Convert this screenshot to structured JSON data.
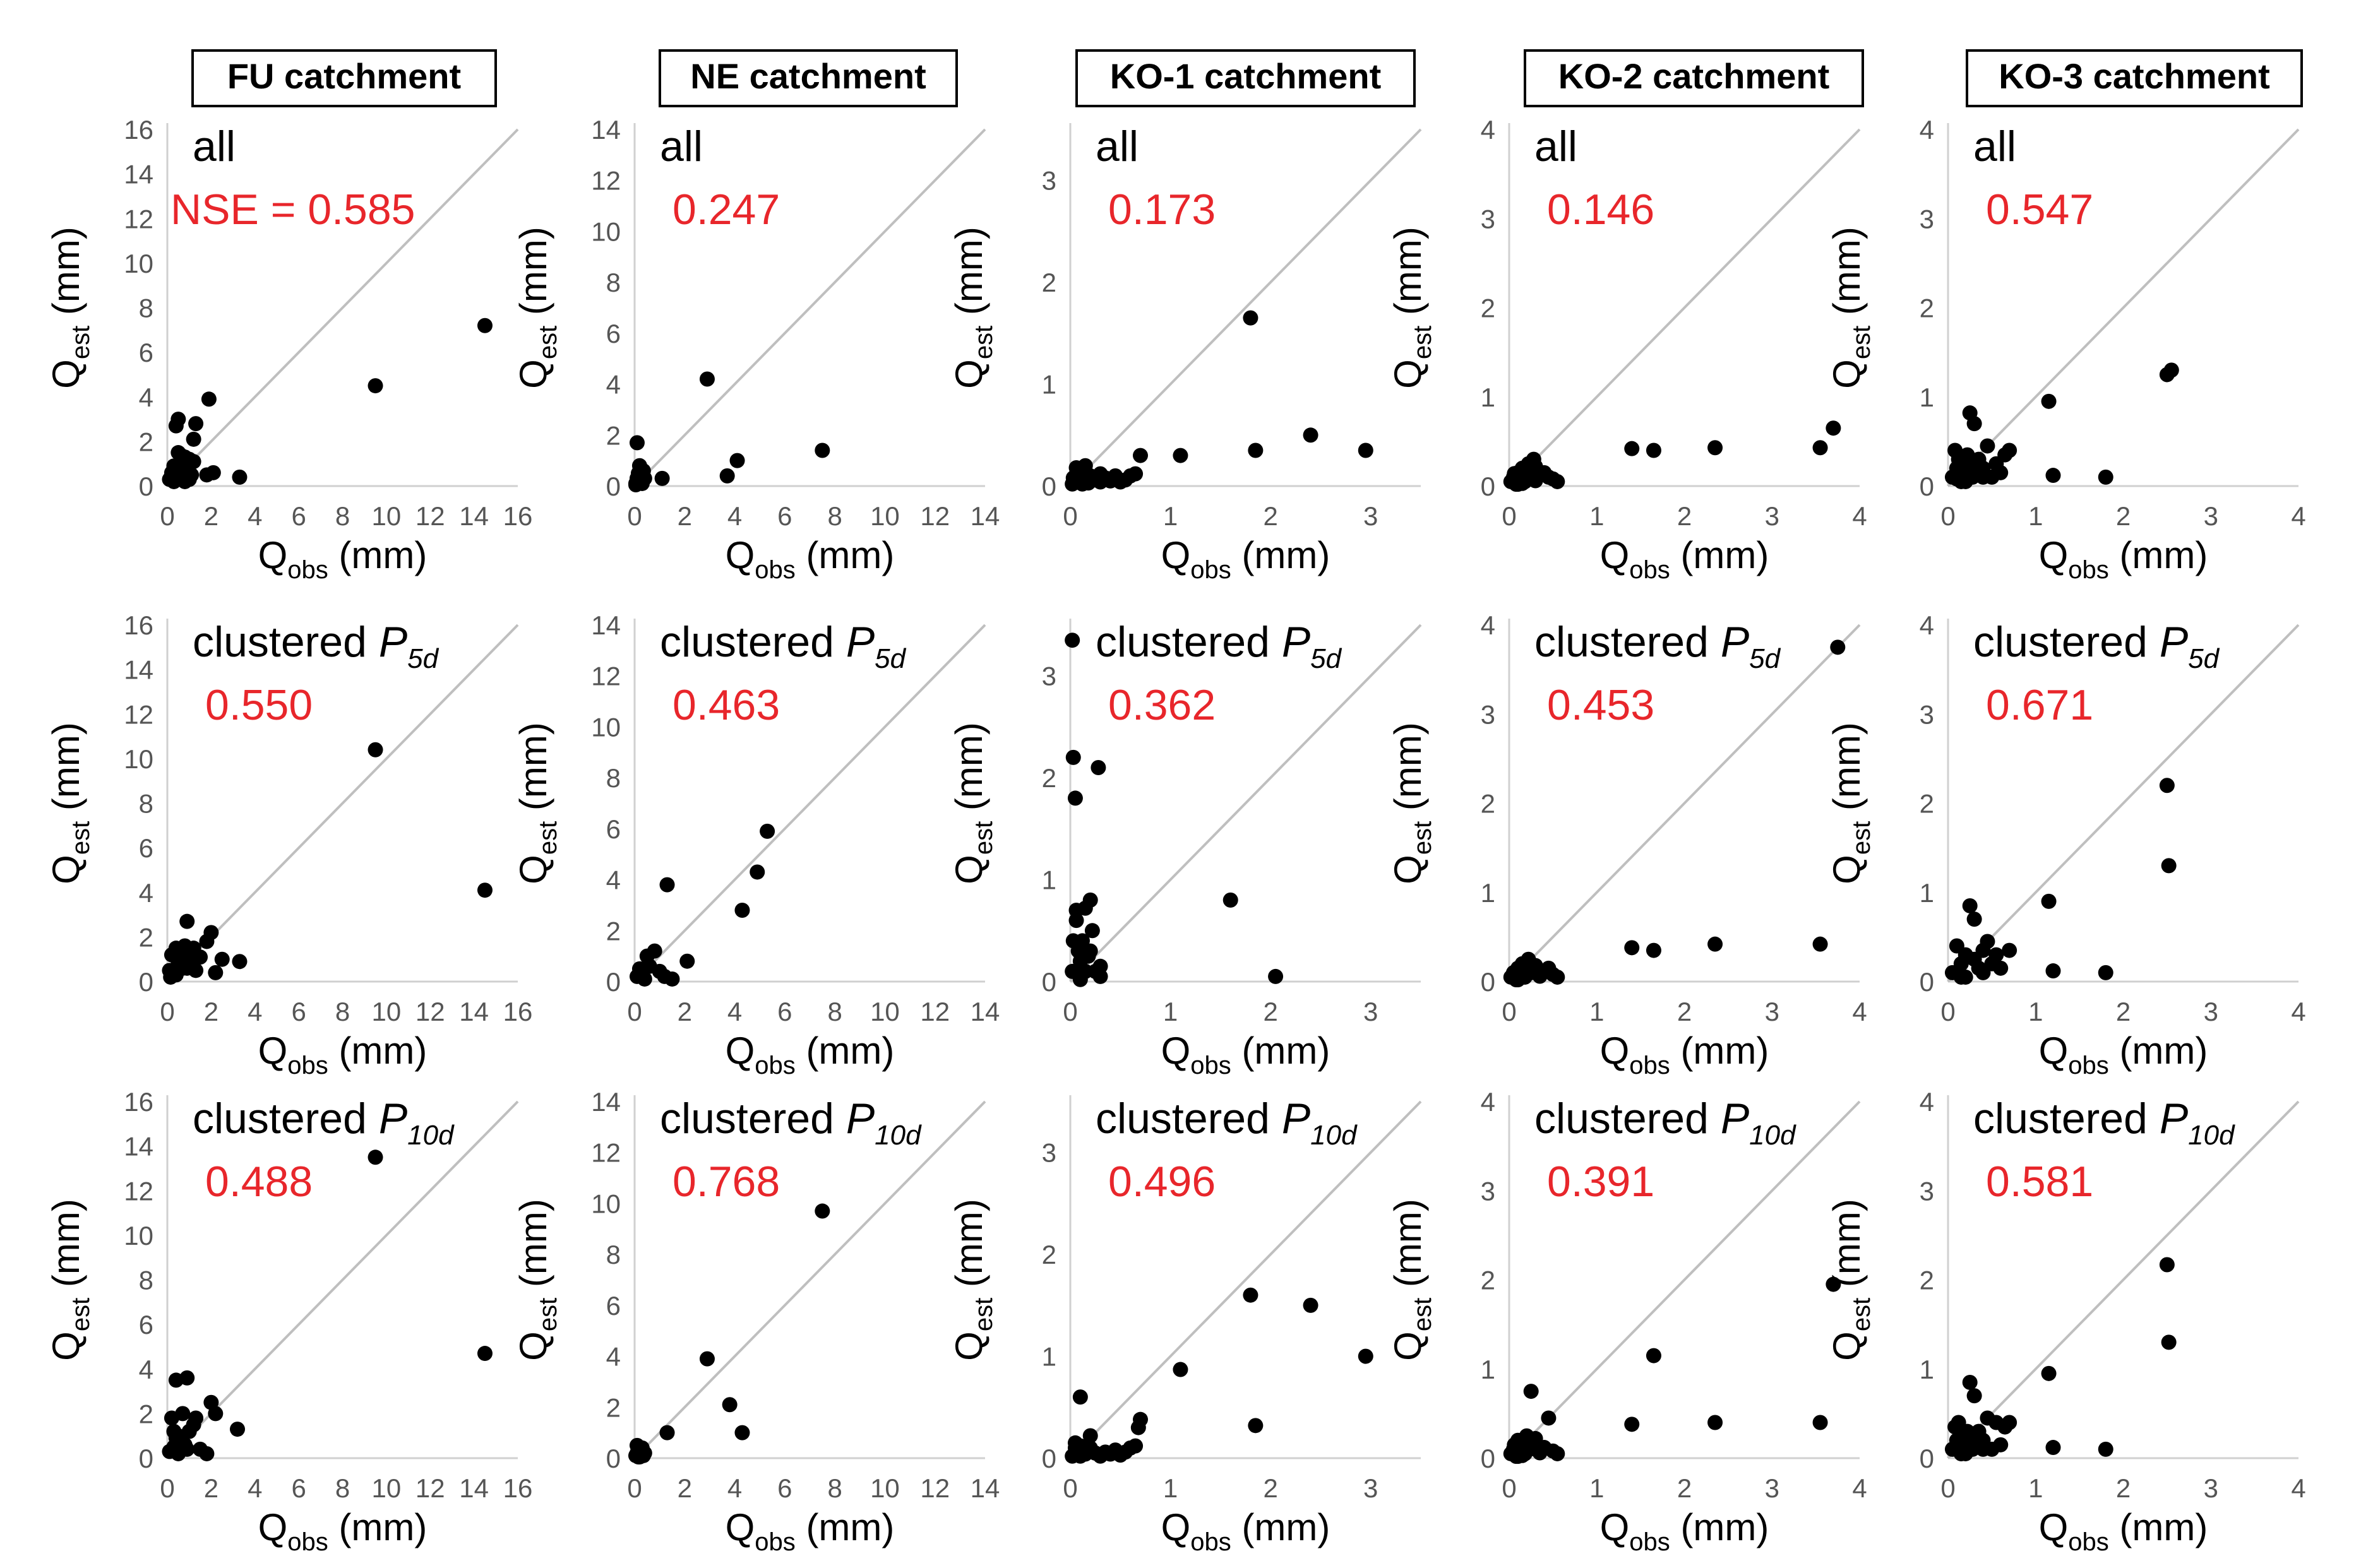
{
  "columns": [
    {
      "title": "FU catchment"
    },
    {
      "title": "NE catchment"
    },
    {
      "title": "KO-1 catchment"
    },
    {
      "title": "KO-2 catchment"
    },
    {
      "title": "KO-3 catchment"
    }
  ],
  "rows": [
    {
      "label": "all",
      "subscript": ""
    },
    {
      "label": "clustered P",
      "subscript": "5d"
    },
    {
      "label": "clustered P",
      "subscript": "10d"
    }
  ],
  "axis": {
    "x_label_main": "Q",
    "x_label_sub": "obs",
    "x_label_unit": " (mm)",
    "y_label_main": "Q",
    "y_label_sub": "est",
    "y_label_unit": " (mm)"
  },
  "colors": {
    "points": "#000000",
    "nse_text": "#e8262b",
    "one_to_one_line": "#bfbfbf",
    "axis_line": "#d0d0d0",
    "tick_text": "#555555"
  },
  "chart_data": [
    {
      "type": "scatter",
      "catchment": "FU catchment",
      "case": "all",
      "nse_label": "NSE = 0.585",
      "xlim": [
        0,
        16
      ],
      "ylim": [
        0,
        16
      ],
      "ticks": [
        0,
        2,
        4,
        6,
        8,
        10,
        12,
        14,
        16
      ],
      "x": [
        0.1,
        0.2,
        0.3,
        0.4,
        0.5,
        0.6,
        0.7,
        0.8,
        0.9,
        1.0,
        1.1,
        1.2,
        1.3,
        0.4,
        0.5,
        0.8,
        1.2,
        0.6,
        1.0,
        0.2,
        0.3,
        0.7,
        1.8,
        2.1,
        3.3,
        1.9,
        9.5,
        14.5,
        0.9,
        0.5
      ],
      "y": [
        0.3,
        0.5,
        0.2,
        0.8,
        0.4,
        1.0,
        0.6,
        1.3,
        0.9,
        1.2,
        0.5,
        2.1,
        2.8,
        2.7,
        3.0,
        0.2,
        1.1,
        1.4,
        0.3,
        0.6,
        0.9,
        0.4,
        0.5,
        0.6,
        0.4,
        3.9,
        4.5,
        7.2,
        0.7,
        1.5
      ]
    },
    {
      "type": "scatter",
      "catchment": "NE catchment",
      "case": "all",
      "nse_label": "0.247",
      "xlim": [
        0,
        14
      ],
      "ylim": [
        0,
        14
      ],
      "ticks": [
        0,
        2,
        4,
        6,
        8,
        10,
        12,
        14
      ],
      "x": [
        0.05,
        0.1,
        0.15,
        0.2,
        0.25,
        0.3,
        0.35,
        0.4,
        0.1,
        0.2,
        0.05,
        0.3,
        1.1,
        2.9,
        3.7,
        4.1,
        7.5,
        0.15
      ],
      "y": [
        0.1,
        0.3,
        0.5,
        0.2,
        0.4,
        0.1,
        0.6,
        0.3,
        1.7,
        0.8,
        0.05,
        0.5,
        0.3,
        4.2,
        0.4,
        1.0,
        1.4,
        0.2
      ]
    },
    {
      "type": "scatter",
      "catchment": "KO-1 catchment",
      "case": "all",
      "nse_label": "0.173",
      "xlim": [
        0,
        3.5
      ],
      "ylim": [
        0,
        3.5
      ],
      "ticks": [
        0,
        1,
        2,
        3
      ],
      "x": [
        0.02,
        0.05,
        0.08,
        0.1,
        0.12,
        0.15,
        0.18,
        0.2,
        0.25,
        0.3,
        0.35,
        0.4,
        0.45,
        0.5,
        0.55,
        0.6,
        0.65,
        0.7,
        0.06,
        0.09,
        0.14,
        0.03,
        0.22,
        1.1,
        1.8,
        1.85,
        2.4,
        2.95,
        0.12,
        0.3
      ],
      "y": [
        0.02,
        0.1,
        0.05,
        0.15,
        0.08,
        0.2,
        0.03,
        0.1,
        0.06,
        0.04,
        0.08,
        0.05,
        0.1,
        0.04,
        0.06,
        0.1,
        0.12,
        0.3,
        0.18,
        0.12,
        0.16,
        0.08,
        0.09,
        0.3,
        1.65,
        0.35,
        0.5,
        0.35,
        0.02,
        0.12
      ]
    },
    {
      "type": "scatter",
      "catchment": "KO-2 catchment",
      "case": "all",
      "nse_label": "0.146",
      "xlim": [
        0,
        4
      ],
      "ylim": [
        0,
        4
      ],
      "ticks": [
        0,
        1,
        2,
        3,
        4
      ],
      "x": [
        0.02,
        0.05,
        0.08,
        0.1,
        0.12,
        0.15,
        0.18,
        0.2,
        0.22,
        0.25,
        0.28,
        0.3,
        0.35,
        0.4,
        0.45,
        0.5,
        0.55,
        0.1,
        0.2,
        0.3,
        0.06,
        1.4,
        1.65,
        2.35,
        3.55,
        3.7,
        0.15
      ],
      "y": [
        0.05,
        0.1,
        0.02,
        0.15,
        0.08,
        0.2,
        0.05,
        0.12,
        0.25,
        0.1,
        0.3,
        0.06,
        0.12,
        0.15,
        0.1,
        0.08,
        0.05,
        0.02,
        0.18,
        0.22,
        0.14,
        0.42,
        0.4,
        0.43,
        0.43,
        0.65,
        0.03
      ]
    },
    {
      "type": "scatter",
      "catchment": "KO-3 catchment",
      "case": "all",
      "nse_label": "0.547",
      "xlim": [
        0,
        4
      ],
      "ylim": [
        0,
        4
      ],
      "ticks": [
        0,
        1,
        2,
        3,
        4
      ],
      "x": [
        0.05,
        0.08,
        0.1,
        0.12,
        0.15,
        0.18,
        0.2,
        0.22,
        0.25,
        0.28,
        0.3,
        0.35,
        0.4,
        0.45,
        0.5,
        0.55,
        0.6,
        0.65,
        0.7,
        0.2,
        0.3,
        0.4,
        1.15,
        1.2,
        1.8,
        2.5,
        2.55,
        0.1,
        0.25
      ],
      "y": [
        0.1,
        0.4,
        0.2,
        0.3,
        0.05,
        0.15,
        0.25,
        0.35,
        0.82,
        0.1,
        0.7,
        0.3,
        0.2,
        0.45,
        0.1,
        0.25,
        0.15,
        0.35,
        0.4,
        0.05,
        0.2,
        0.1,
        0.95,
        0.12,
        0.1,
        1.25,
        1.3,
        0.08,
        0.3
      ]
    },
    {
      "type": "scatter",
      "catchment": "FU catchment",
      "case": "clustered P5d",
      "nse_label": "0.550",
      "xlim": [
        0,
        16
      ],
      "ylim": [
        0,
        16
      ],
      "ticks": [
        0,
        2,
        4,
        6,
        8,
        10,
        12,
        14,
        16
      ],
      "x": [
        0.1,
        0.2,
        0.3,
        0.4,
        0.5,
        0.6,
        0.7,
        0.8,
        0.9,
        1.0,
        1.1,
        1.2,
        1.3,
        1.5,
        1.8,
        2.0,
        2.2,
        2.5,
        3.3,
        0.4,
        0.6,
        0.9,
        9.5,
        14.5,
        0.15
      ],
      "y": [
        0.5,
        1.2,
        0.3,
        1.5,
        0.8,
        1.0,
        0.6,
        1.6,
        2.7,
        0.9,
        1.2,
        1.5,
        0.5,
        1.1,
        1.8,
        2.2,
        0.4,
        1.0,
        0.9,
        0.3,
        1.3,
        0.6,
        10.4,
        4.1,
        0.2
      ]
    },
    {
      "type": "scatter",
      "catchment": "NE catchment",
      "case": "clustered P5d",
      "nse_label": "0.463",
      "xlim": [
        0,
        14
      ],
      "ylim": [
        0,
        14
      ],
      "ticks": [
        0,
        2,
        4,
        6,
        8,
        10,
        12,
        14
      ],
      "x": [
        0.1,
        0.2,
        0.3,
        0.5,
        0.6,
        0.8,
        1.0,
        1.2,
        1.5,
        1.3,
        2.1,
        4.3,
        4.9,
        5.3,
        0.4
      ],
      "y": [
        0.2,
        0.5,
        0.3,
        1.0,
        0.6,
        1.2,
        0.4,
        0.2,
        0.1,
        3.8,
        0.8,
        2.8,
        4.3,
        5.9,
        0.1
      ]
    },
    {
      "type": "scatter",
      "catchment": "KO-1 catchment",
      "case": "clustered P5d",
      "nse_label": "0.362",
      "xlim": [
        0,
        3.5
      ],
      "ylim": [
        0,
        3.5
      ],
      "ticks": [
        0,
        1,
        2,
        3
      ],
      "x": [
        0.02,
        0.03,
        0.05,
        0.06,
        0.08,
        0.1,
        0.12,
        0.15,
        0.18,
        0.2,
        0.22,
        0.25,
        0.28,
        0.3,
        0.02,
        0.03,
        0.06,
        0.1,
        0.2,
        0.3,
        0.1,
        1.6,
        2.05,
        0.15
      ],
      "y": [
        3.35,
        2.2,
        1.8,
        0.7,
        0.3,
        0.2,
        0.4,
        0.1,
        0.25,
        0.8,
        0.5,
        0.1,
        2.1,
        0.05,
        0.1,
        0.4,
        0.6,
        0.05,
        0.3,
        0.15,
        0.02,
        0.8,
        0.05,
        0.72
      ]
    },
    {
      "type": "scatter",
      "catchment": "KO-2 catchment",
      "case": "clustered P5d",
      "nse_label": "0.453",
      "xlim": [
        0,
        4
      ],
      "ylim": [
        0,
        4
      ],
      "ticks": [
        0,
        1,
        2,
        3,
        4
      ],
      "x": [
        0.02,
        0.05,
        0.08,
        0.1,
        0.12,
        0.15,
        0.18,
        0.2,
        0.22,
        0.25,
        0.3,
        0.35,
        0.4,
        0.45,
        0.5,
        0.55,
        0.1,
        1.4,
        1.65,
        2.35,
        3.55,
        3.75,
        0.2
      ],
      "y": [
        0.05,
        0.1,
        0.02,
        0.15,
        0.08,
        0.2,
        0.05,
        0.12,
        0.25,
        0.1,
        0.18,
        0.06,
        0.12,
        0.15,
        0.08,
        0.05,
        0.02,
        0.38,
        0.35,
        0.42,
        0.42,
        3.75,
        0.2
      ]
    },
    {
      "type": "scatter",
      "catchment": "KO-3 catchment",
      "case": "clustered P5d",
      "nse_label": "0.671",
      "xlim": [
        0,
        4
      ],
      "ylim": [
        0,
        4
      ],
      "ticks": [
        0,
        1,
        2,
        3,
        4
      ],
      "x": [
        0.05,
        0.1,
        0.15,
        0.2,
        0.25,
        0.3,
        0.35,
        0.4,
        0.45,
        0.5,
        0.55,
        0.6,
        0.7,
        0.2,
        0.3,
        0.4,
        1.15,
        1.2,
        1.8,
        2.5,
        2.52,
        0.15
      ],
      "y": [
        0.1,
        0.4,
        0.2,
        0.3,
        0.85,
        0.7,
        0.15,
        0.35,
        0.45,
        0.2,
        0.3,
        0.15,
        0.35,
        0.05,
        0.25,
        0.1,
        0.9,
        0.12,
        0.1,
        2.2,
        1.3,
        0.05
      ]
    },
    {
      "type": "scatter",
      "catchment": "FU catchment",
      "case": "clustered P10d",
      "nse_label": "0.488",
      "xlim": [
        0,
        16
      ],
      "ylim": [
        0,
        16
      ],
      "ticks": [
        0,
        2,
        4,
        6,
        8,
        10,
        12,
        14,
        16
      ],
      "x": [
        0.1,
        0.2,
        0.3,
        0.4,
        0.5,
        0.6,
        0.7,
        0.8,
        0.9,
        1.0,
        1.2,
        1.3,
        1.5,
        1.8,
        2.0,
        2.2,
        3.2,
        0.4,
        0.6,
        0.9,
        0.3,
        9.5,
        14.5,
        0.5
      ],
      "y": [
        0.3,
        1.8,
        0.5,
        3.5,
        1.0,
        0.8,
        2.0,
        0.6,
        3.6,
        1.2,
        1.5,
        1.8,
        0.4,
        0.2,
        2.5,
        2.0,
        1.3,
        0.9,
        0.6,
        0.4,
        1.2,
        13.5,
        4.7,
        0.2
      ]
    },
    {
      "type": "scatter",
      "catchment": "NE catchment",
      "case": "clustered P10d",
      "nse_label": "0.768",
      "xlim": [
        0,
        14
      ],
      "ylim": [
        0,
        14
      ],
      "ticks": [
        0,
        2,
        4,
        6,
        8,
        10,
        12,
        14
      ],
      "x": [
        0.05,
        0.1,
        0.15,
        0.2,
        0.25,
        0.3,
        0.35,
        0.4,
        0.1,
        0.2,
        1.3,
        2.9,
        3.8,
        4.3,
        7.5,
        0.3
      ],
      "y": [
        0.1,
        0.2,
        0.05,
        0.3,
        0.15,
        0.4,
        0.1,
        0.2,
        0.5,
        0.05,
        1.0,
        3.9,
        2.1,
        1.0,
        9.7,
        0.25
      ]
    },
    {
      "type": "scatter",
      "catchment": "KO-1 catchment",
      "case": "clustered P10d",
      "nse_label": "0.496",
      "xlim": [
        0,
        3.5
      ],
      "ylim": [
        0,
        3.5
      ],
      "ticks": [
        0,
        1,
        2,
        3
      ],
      "x": [
        0.02,
        0.05,
        0.08,
        0.1,
        0.12,
        0.15,
        0.18,
        0.2,
        0.25,
        0.3,
        0.35,
        0.4,
        0.45,
        0.5,
        0.55,
        0.6,
        0.65,
        0.7,
        0.05,
        0.1,
        0.2,
        0.25,
        1.1,
        1.8,
        1.85,
        2.4,
        2.95,
        0.1,
        0.68
      ],
      "y": [
        0.02,
        0.1,
        0.05,
        0.12,
        0.08,
        0.04,
        0.06,
        0.1,
        0.05,
        0.02,
        0.06,
        0.04,
        0.08,
        0.03,
        0.06,
        0.1,
        0.12,
        0.38,
        0.15,
        0.6,
        0.22,
        0.05,
        0.87,
        1.6,
        0.32,
        1.5,
        1.0,
        0.02,
        0.3
      ]
    },
    {
      "type": "scatter",
      "catchment": "KO-2 catchment",
      "case": "clustered P10d",
      "nse_label": "0.391",
      "xlim": [
        0,
        4
      ],
      "ylim": [
        0,
        4
      ],
      "ticks": [
        0,
        1,
        2,
        3,
        4
      ],
      "x": [
        0.02,
        0.05,
        0.08,
        0.1,
        0.12,
        0.15,
        0.18,
        0.2,
        0.22,
        0.25,
        0.3,
        0.35,
        0.4,
        0.45,
        0.5,
        0.55,
        0.06,
        0.1,
        0.2,
        0.3,
        1.4,
        1.65,
        2.35,
        3.55,
        3.7,
        0.15
      ],
      "y": [
        0.05,
        0.1,
        0.02,
        0.2,
        0.08,
        0.15,
        0.05,
        0.25,
        0.12,
        0.75,
        0.1,
        0.06,
        0.12,
        0.45,
        0.08,
        0.05,
        0.15,
        0.02,
        0.18,
        0.22,
        0.38,
        1.15,
        0.4,
        0.4,
        1.95,
        0.03
      ]
    },
    {
      "type": "scatter",
      "catchment": "KO-3 catchment",
      "case": "clustered P10d",
      "nse_label": "0.581",
      "xlim": [
        0,
        4
      ],
      "ylim": [
        0,
        4
      ],
      "ticks": [
        0,
        1,
        2,
        3,
        4
      ],
      "x": [
        0.05,
        0.08,
        0.1,
        0.12,
        0.15,
        0.18,
        0.2,
        0.22,
        0.25,
        0.28,
        0.3,
        0.35,
        0.4,
        0.45,
        0.5,
        0.55,
        0.6,
        0.65,
        0.7,
        0.2,
        0.3,
        0.4,
        1.15,
        1.2,
        1.8,
        2.5,
        2.52,
        0.15
      ],
      "y": [
        0.1,
        0.35,
        0.2,
        0.4,
        0.05,
        0.25,
        0.15,
        0.3,
        0.85,
        0.1,
        0.7,
        0.3,
        0.2,
        0.45,
        0.1,
        0.4,
        0.15,
        0.35,
        0.4,
        0.05,
        0.2,
        0.1,
        0.95,
        0.12,
        0.1,
        2.17,
        1.3,
        0.05
      ]
    }
  ]
}
